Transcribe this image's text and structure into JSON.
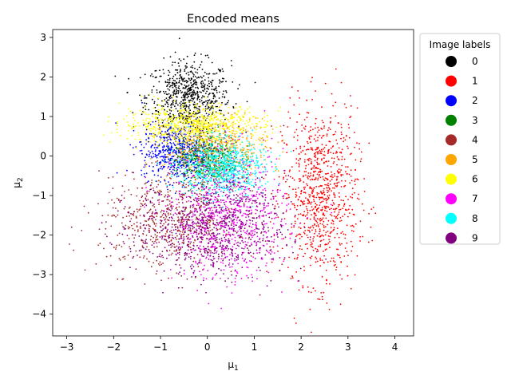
{
  "chart_data": {
    "type": "scatter",
    "title": "Encoded means",
    "xlabel_main": "μ",
    "xlabel_sub": "1",
    "ylabel_main": "μ",
    "ylabel_sub": "2",
    "xlim": [
      -3.3,
      4.4
    ],
    "ylim": [
      -4.55,
      3.2
    ],
    "xticks": [
      -3,
      -2,
      -1,
      0,
      1,
      2,
      3,
      4
    ],
    "yticks": [
      -4,
      -3,
      -2,
      -1,
      0,
      1,
      2,
      3
    ],
    "grid": false,
    "legend": {
      "title": "Image labels",
      "placement": "outside-top-right"
    },
    "series": [
      {
        "name": "0",
        "color": "#000000",
        "center": [
          -0.4,
          1.5
        ],
        "spread": [
          0.45,
          0.45
        ],
        "count": 700
      },
      {
        "name": "1",
        "color": "#ff0000",
        "center": [
          2.4,
          -1.0
        ],
        "spread": [
          0.4,
          1.1
        ],
        "count": 900
      },
      {
        "name": "2",
        "color": "#0000ff",
        "center": [
          -0.6,
          0.1
        ],
        "spread": [
          0.4,
          0.35
        ],
        "count": 600
      },
      {
        "name": "3",
        "color": "#008000",
        "center": [
          0.0,
          -0.05
        ],
        "spread": [
          0.35,
          0.35
        ],
        "count": 500
      },
      {
        "name": "4",
        "color": "#a52a2a",
        "center": [
          -0.8,
          -1.7
        ],
        "spread": [
          0.75,
          0.6
        ],
        "count": 600
      },
      {
        "name": "5",
        "color": "#ffa500",
        "center": [
          0.2,
          0.2
        ],
        "spread": [
          0.55,
          0.4
        ],
        "count": 500
      },
      {
        "name": "6",
        "color": "#ffff00",
        "center": [
          -0.3,
          0.8
        ],
        "spread": [
          0.75,
          0.25
        ],
        "count": 700
      },
      {
        "name": "7",
        "color": "#ff00ff",
        "center": [
          0.5,
          -1.5
        ],
        "spread": [
          0.6,
          0.8
        ],
        "count": 700
      },
      {
        "name": "8",
        "color": "#00ffff",
        "center": [
          0.3,
          -0.3
        ],
        "spread": [
          0.45,
          0.35
        ],
        "count": 700
      },
      {
        "name": "9",
        "color": "#800080",
        "center": [
          0.1,
          -1.8
        ],
        "spread": [
          0.8,
          0.6
        ],
        "count": 900
      }
    ]
  }
}
